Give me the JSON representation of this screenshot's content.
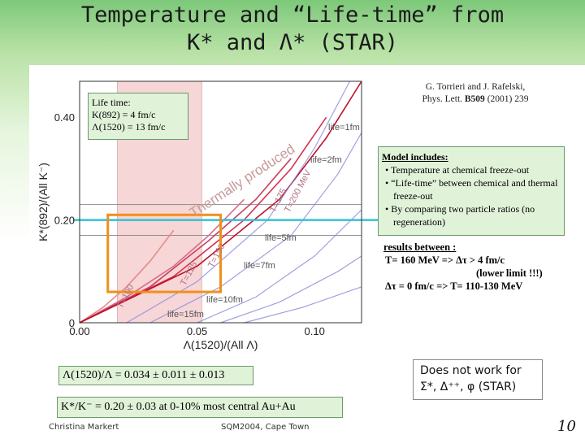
{
  "slide": {
    "title_line1": "Temperature and “Life-time” from",
    "title_line2": "K* and Λ* (STAR)",
    "reference": {
      "authors": "G. Torrieri and J. Rafelski,",
      "journal": "Phys. Lett.",
      "volume": "B509",
      "rest": "(2001) 239"
    },
    "lifetime_box": {
      "line1": "Life time:",
      "line2": "K(892)   =  4  fm/c",
      "line3": "Λ(1520) = 13  fm/c"
    },
    "model_box": {
      "heading": "Model includes:",
      "items": [
        "Temperature at chemical freeze-out",
        "“Life-time” between chemical and thermal freeze-out",
        "By comparing two particle ratios (no regeneration)"
      ]
    },
    "results": {
      "heading": "results between :",
      "line1": "T= 160 MeV  =>  Δτ  > 4 fm/c",
      "line2": "(lower limit !!!)",
      "line3": "Δτ = 0 fm/c   =>  T= 110-130 MeV"
    },
    "lambda_ratio": "Λ(1520)/Λ = 0.034 ± 0.011 ± 0.013",
    "k_ratio": "K*/K⁻ = 0.20 ± 0.03 at 0-10% most central Au+Au",
    "does_not_work": {
      "line1": "Does not work for",
      "line2": "Σ*, Δ⁺⁺, φ  (STAR)"
    },
    "footer_left": "Christina Markert",
    "footer_center": "SQM2004, Cape Town",
    "page_number": "10",
    "colors": {
      "title_band": "#7dc87a",
      "box_fill": "#e0f2d8",
      "highlight_box": "#f0901a",
      "cyan_line": "#35c0d8",
      "pink_band": "#f6d6d6"
    }
  },
  "chart_data": {
    "type": "line",
    "xlabel": "Λ(1520)/(All Λ)",
    "ylabel": "K*(892)/(All K⁻)",
    "xlim": [
      0.0,
      0.12
    ],
    "ylim": [
      0.0,
      0.47
    ],
    "x_ticks": [
      "0.00",
      "0.05",
      "0.10"
    ],
    "y_ticks": [
      "0",
      "0.20",
      "0.40"
    ],
    "annotations": {
      "thermal": "Thermally produced",
      "t_labels": [
        "T=100",
        "T=125",
        "T=150",
        "T=175",
        "T=200 MeV"
      ],
      "life_labels": [
        "life=1fm",
        "life=2fm",
        "life=5fm",
        "life=7fm",
        "life=10fm",
        "life=15fm"
      ]
    },
    "measurements": {
      "k_star_ratio": 0.2,
      "k_star_band": [
        0.17,
        0.23
      ],
      "lambda_ratio": 0.034,
      "lambda_band": [
        0.016,
        0.052
      ]
    },
    "series": [
      {
        "name": "T=100",
        "x": [
          0.0,
          0.01,
          0.02,
          0.03,
          0.04
        ],
        "y": [
          0.0,
          0.03,
          0.07,
          0.12,
          0.18
        ]
      },
      {
        "name": "T=125",
        "x": [
          0.0,
          0.02,
          0.04,
          0.055,
          0.07
        ],
        "y": [
          0.0,
          0.05,
          0.11,
          0.17,
          0.24
        ]
      },
      {
        "name": "T=150",
        "x": [
          0.0,
          0.03,
          0.055,
          0.075,
          0.09
        ],
        "y": [
          0.0,
          0.07,
          0.16,
          0.24,
          0.32
        ]
      },
      {
        "name": "T=175",
        "x": [
          0.0,
          0.04,
          0.07,
          0.09,
          0.105
        ],
        "y": [
          0.0,
          0.09,
          0.2,
          0.3,
          0.4
        ]
      },
      {
        "name": "T=200 MeV",
        "x": [
          0.0,
          0.05,
          0.085,
          0.105,
          0.12
        ],
        "y": [
          0.0,
          0.11,
          0.24,
          0.36,
          0.47
        ]
      }
    ]
  }
}
